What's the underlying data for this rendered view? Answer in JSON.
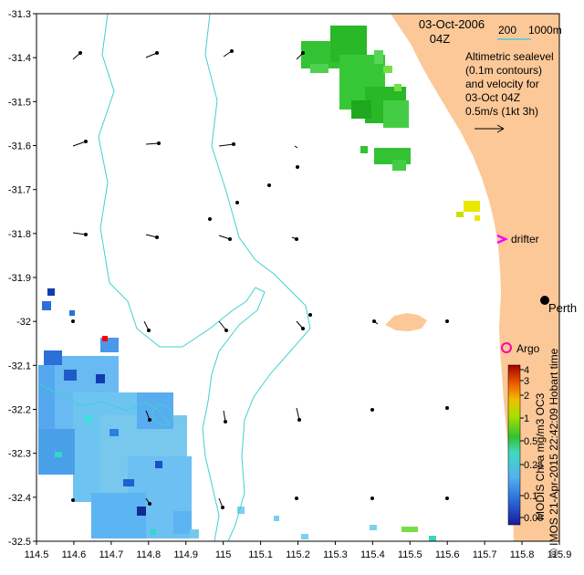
{
  "title": {
    "date": "03-Oct-2006",
    "time": "04Z"
  },
  "bathy_legend": {
    "label_200": "200",
    "label_1000": "1000m",
    "color": "#40d0d0"
  },
  "description": [
    "Altimetric sealevel",
    "(0.1m contours)",
    "and velocity for",
    "03-Oct 04Z",
    "0.5m/s (1kt 3h)"
  ],
  "x_axis": {
    "min": 114.5,
    "max": 115.9,
    "ticks": [
      "114.5",
      "114.6",
      "114.7",
      "114.8",
      "114.9",
      "115",
      "115.1",
      "115.2",
      "115.3",
      "115.4",
      "115.5",
      "115.6",
      "115.7",
      "115.8",
      "115.9"
    ]
  },
  "y_axis": {
    "min": -32.5,
    "max": -31.3,
    "ticks": [
      "-31.3",
      "-31.4",
      "-31.5",
      "-31.6",
      "-31.7",
      "-31.8",
      "-31.9",
      "-32",
      "-32.1",
      "-32.2",
      "-32.3",
      "-32.4",
      "-32.5"
    ]
  },
  "places": {
    "perth": "Perth",
    "drifter": "drifter",
    "argo": "Argo"
  },
  "colorbar": {
    "label": "MODIS Chl-a mg/m3 OC3",
    "ticks": [
      "4",
      "3",
      "2",
      "1",
      "0.5",
      "0.25",
      "0.1",
      "0.05"
    ]
  },
  "credit": "© IMOS 21-Apr-2015 22:42:09 Hobart time",
  "colors": {
    "land": "#fcc898",
    "ocean": "#ffffff",
    "contour": "#40d0d0",
    "drifter": "#ff00ff",
    "argo": "#ff00aa"
  }
}
